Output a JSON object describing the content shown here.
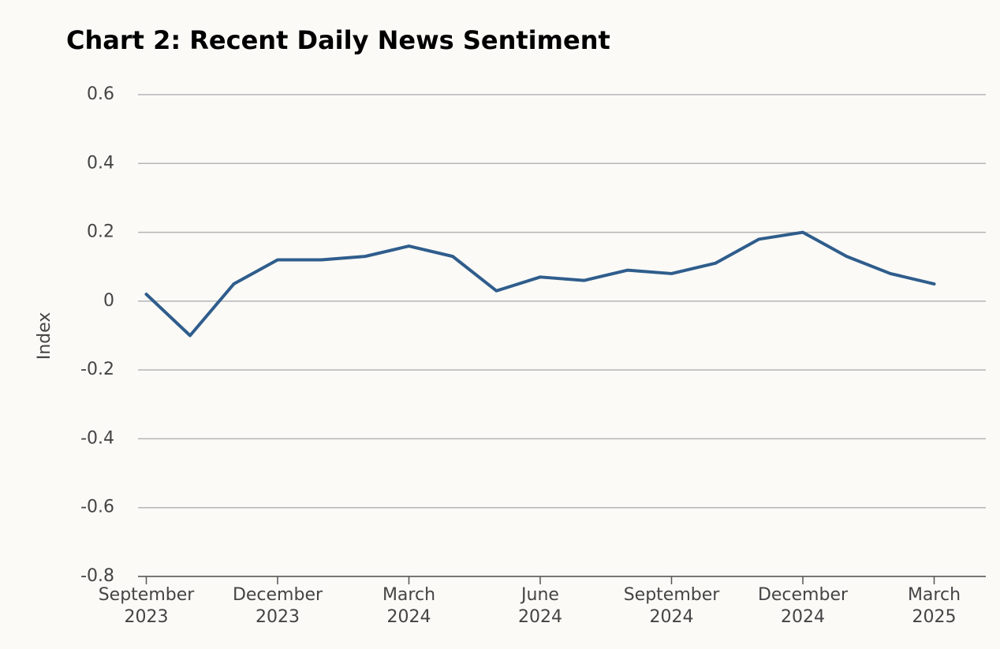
{
  "chart_data": {
    "type": "line",
    "title": "Chart 2: Recent Daily News Sentiment",
    "y_label": "Index",
    "x": [
      "2023-09",
      "2023-10",
      "2023-11",
      "2023-12",
      "2024-01",
      "2024-02",
      "2024-03",
      "2024-04",
      "2024-05",
      "2024-06",
      "2024-07",
      "2024-08",
      "2024-09",
      "2024-10",
      "2024-11",
      "2024-12",
      "2025-01",
      "2025-02",
      "2025-03"
    ],
    "series": [
      {
        "name": "Index",
        "color": "#2f5d8c",
        "values": [
          0.02,
          -0.1,
          0.05,
          0.12,
          0.12,
          0.13,
          0.16,
          0.13,
          0.03,
          0.07,
          0.06,
          0.09,
          0.08,
          0.11,
          0.18,
          0.2,
          0.13,
          0.08,
          0.05
        ]
      }
    ],
    "xlim": [
      "2023-08",
      "2025-04"
    ],
    "xticks": [
      {
        "value": "2023-09",
        "label": "September 2023"
      },
      {
        "value": "2023-12",
        "label": "December 2023"
      },
      {
        "value": "2024-03",
        "label": "March 2024"
      },
      {
        "value": "2024-06",
        "label": "June 2024"
      },
      {
        "value": "2024-09",
        "label": "September 2024"
      },
      {
        "value": "2024-12",
        "label": "December 2024"
      },
      {
        "value": "2025-03",
        "label": "March 2025"
      }
    ],
    "ylim": [
      -0.8,
      0.6
    ],
    "yticks": [
      -0.8,
      -0.6,
      -0.4,
      -0.2,
      0,
      0.2,
      0.4,
      0.6
    ],
    "grid": true
  }
}
